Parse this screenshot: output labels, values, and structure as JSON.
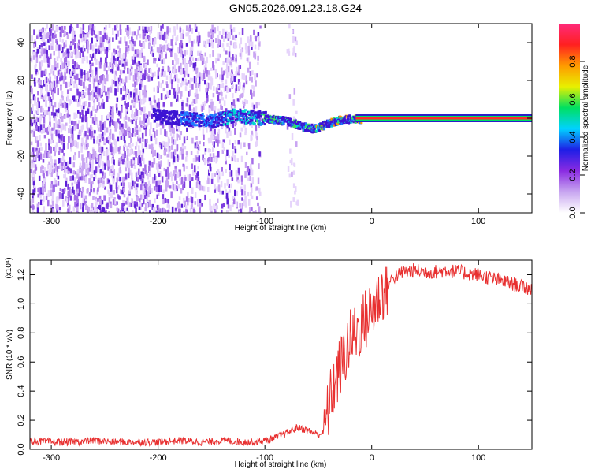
{
  "title": "GN05.2026.091.23.18.G24",
  "chart_data": [
    {
      "type": "heatmap",
      "xlabel": "Height of straight line (km)",
      "ylabel": "Frequency (Hz)",
      "xlim": [
        -320,
        150
      ],
      "ylim": [
        -50,
        50
      ],
      "xticks": [
        -300,
        -200,
        -100,
        0,
        100
      ],
      "yticks": [
        -40,
        -20,
        0,
        20,
        40
      ],
      "colorbar": {
        "label": "Normalized spectral amplitude",
        "range": [
          0.0,
          1.0
        ],
        "ticks": [
          0.0,
          0.2,
          0.4,
          0.6,
          0.8
        ],
        "tick_labels": [
          "0.0",
          "0.2",
          "0.4",
          "0.6",
          "0.8"
        ],
        "colormap": [
          "#ffffff",
          "#c8a6f0",
          "#8a2be2",
          "#1e1ee6",
          "#00d2ff",
          "#00e060",
          "#e8f000",
          "#ff9a00",
          "#ff2020",
          "#ff2a7a"
        ]
      },
      "signal_track": [
        {
          "x": -205,
          "y": 2
        },
        {
          "x": -190,
          "y": 1
        },
        {
          "x": -170,
          "y": 0
        },
        {
          "x": -150,
          "y": -1
        },
        {
          "x": -130,
          "y": 2
        },
        {
          "x": -110,
          "y": 1
        },
        {
          "x": -95,
          "y": 0
        },
        {
          "x": -80,
          "y": -1
        },
        {
          "x": -65,
          "y": -4
        },
        {
          "x": -55,
          "y": -5
        },
        {
          "x": -45,
          "y": -3
        },
        {
          "x": -35,
          "y": -1
        },
        {
          "x": -25,
          "y": 0
        },
        {
          "x": -10,
          "y": 0
        },
        {
          "x": 0,
          "y": 0
        },
        {
          "x": 150,
          "y": 0
        }
      ]
    },
    {
      "type": "line",
      "xlabel": "Height of straight line (km)",
      "ylabel": "SNR (10 * v/v)",
      "yscale_label": "(x10⁴)",
      "xlim": [
        -320,
        150
      ],
      "ylim": [
        0,
        1.3
      ],
      "xticks": [
        -300,
        -200,
        -100,
        0,
        100
      ],
      "yticks": [
        0.0,
        0.2,
        0.4,
        0.6,
        0.8,
        1.0,
        1.2
      ],
      "ytick_labels": [
        "0.0",
        "0.2",
        "0.4",
        "0.6",
        "0.8",
        "1.0",
        "1.2"
      ],
      "series": [
        {
          "color": "#e83030",
          "x": [
            -320,
            -300,
            -280,
            -260,
            -240,
            -220,
            -200,
            -180,
            -160,
            -140,
            -120,
            -110,
            -100,
            -90,
            -80,
            -70,
            -60,
            -50,
            -45,
            -40,
            -35,
            -30,
            -25,
            -20,
            -15,
            -10,
            -5,
            0,
            5,
            10,
            15,
            20,
            25,
            30,
            40,
            50,
            60,
            70,
            80,
            90,
            100,
            110,
            120,
            130,
            140,
            150
          ],
          "y": [
            0.06,
            0.05,
            0.05,
            0.06,
            0.05,
            0.05,
            0.05,
            0.06,
            0.05,
            0.06,
            0.05,
            0.05,
            0.06,
            0.08,
            0.11,
            0.15,
            0.13,
            0.1,
            0.12,
            0.3,
            0.45,
            0.55,
            0.65,
            0.75,
            0.8,
            0.85,
            0.9,
            0.95,
            1.02,
            1.08,
            1.13,
            1.18,
            1.2,
            1.22,
            1.23,
            1.22,
            1.22,
            1.23,
            1.22,
            1.21,
            1.2,
            1.18,
            1.16,
            1.14,
            1.12,
            1.1
          ]
        }
      ]
    }
  ]
}
